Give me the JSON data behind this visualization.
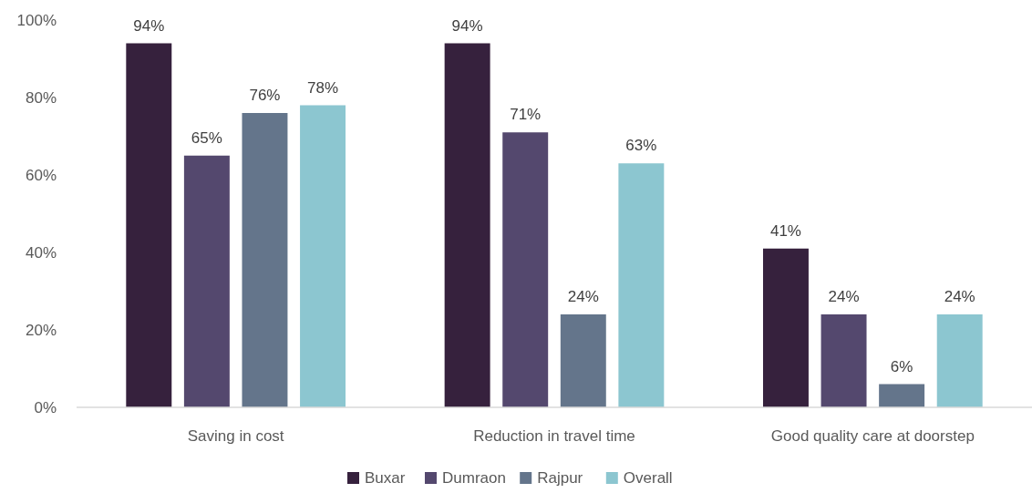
{
  "chart_data": {
    "type": "bar",
    "categories": [
      "Saving in cost",
      "Reduction in travel time",
      "Good quality care at doorstep"
    ],
    "series": [
      {
        "name": "Buxar",
        "color": "#36213d",
        "values": [
          94,
          94,
          41
        ],
        "value_labels": [
          "94%",
          "94%",
          "41%"
        ]
      },
      {
        "name": "Dumraon",
        "color": "#54486e",
        "values": [
          65,
          71,
          24
        ],
        "value_labels": [
          "65%",
          "71%",
          "24%"
        ]
      },
      {
        "name": "Rajpur",
        "color": "#64758b",
        "values": [
          76,
          24,
          6
        ],
        "value_labels": [
          "76%",
          "24%",
          "6%"
        ]
      },
      {
        "name": "Overall",
        "color": "#8cc6d0",
        "values": [
          78,
          63,
          24
        ],
        "value_labels": [
          "78%",
          "63%",
          "24%"
        ]
      }
    ],
    "ylim": [
      0,
      100
    ],
    "yticks": [
      {
        "value": 0,
        "label": "0%"
      },
      {
        "value": 20,
        "label": "20%"
      },
      {
        "value": 40,
        "label": "40%"
      },
      {
        "value": 60,
        "label": "60%"
      },
      {
        "value": 80,
        "label": "80%"
      },
      {
        "value": 100,
        "label": "100%"
      }
    ],
    "grid": false,
    "legend": "bottom"
  }
}
